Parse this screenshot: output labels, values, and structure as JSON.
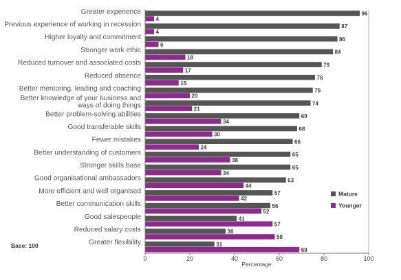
{
  "chart_data": {
    "type": "bar",
    "orientation": "horizontal",
    "categories": [
      "Greater experience",
      "Previous experience of working in recession",
      "Higher loyalty and commitment",
      "Stronger work ethic",
      "Reduced turnover and associated costs",
      "Reduced absence",
      "Better mentoring, leading and coaching",
      [
        "Better knowledge of your business and",
        "ways of doing things"
      ],
      "Better problem-solving abilities",
      "Good transferable skills",
      "Fewer mistakes",
      "Better understanding of customers",
      "Stronger skills base",
      "Good organisational ambassadors",
      "More efficient and well organised",
      "Better communication skills",
      "Good salespeople",
      "Reduced salary costs",
      "Greater flexibility"
    ],
    "series": [
      {
        "name": "Mature",
        "color": "#555555",
        "values": [
          96,
          87,
          86,
          84,
          79,
          76,
          75,
          74,
          69,
          68,
          66,
          65,
          65,
          63,
          57,
          56,
          41,
          36,
          31
        ]
      },
      {
        "name": "Younger",
        "color": "#8e2a8e",
        "values": [
          4,
          4,
          6,
          18,
          17,
          15,
          20,
          21,
          34,
          30,
          24,
          38,
          34,
          44,
          42,
          52,
          57,
          58,
          69
        ]
      }
    ],
    "xlabel": "Percentage",
    "ylabel": "",
    "xlim": [
      0,
      100
    ],
    "xticks": [
      0,
      20,
      40,
      60,
      80,
      100
    ],
    "grid": false,
    "legend_position": "right",
    "note": "Base: 100"
  }
}
